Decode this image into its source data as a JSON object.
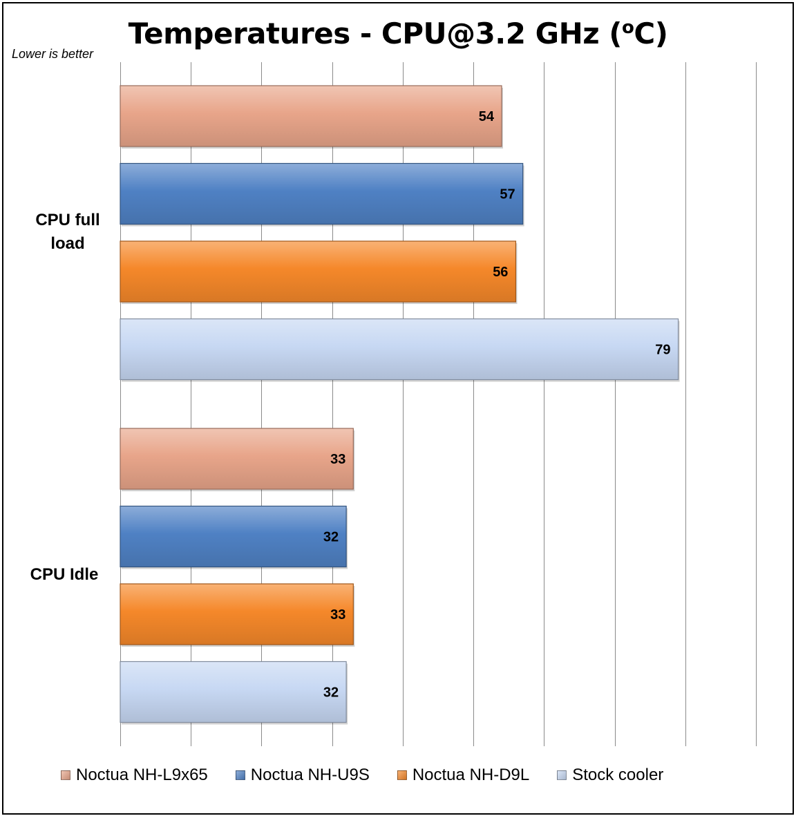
{
  "chart_data": {
    "type": "bar",
    "orientation": "horizontal",
    "title_main": "Temperatures - CPU@3.2 GHz (",
    "title_sup": "o",
    "title_end": "C)",
    "note": "Lower is better",
    "categories": [
      "CPU full load",
      "CPU Idle"
    ],
    "category_lines": [
      [
        "CPU full",
        "load"
      ],
      [
        "CPU Idle"
      ]
    ],
    "series": [
      {
        "name": "Noctua NH-L9x65",
        "values": [
          54,
          33
        ],
        "color": "#e8a58a"
      },
      {
        "name": "Noctua NH-U9S",
        "values": [
          57,
          32
        ],
        "color": "#4f81c4"
      },
      {
        "name": "Noctua NH-D9L",
        "values": [
          56,
          33
        ],
        "color": "#f5882a"
      },
      {
        "name": "Stock cooler",
        "values": [
          79,
          32
        ],
        "color": "#c7d8f3"
      }
    ],
    "xlim": [
      0,
      90
    ],
    "grid_step": 10,
    "x_tick_labels_shown": false,
    "grid": true,
    "legend_position": "bottom"
  }
}
